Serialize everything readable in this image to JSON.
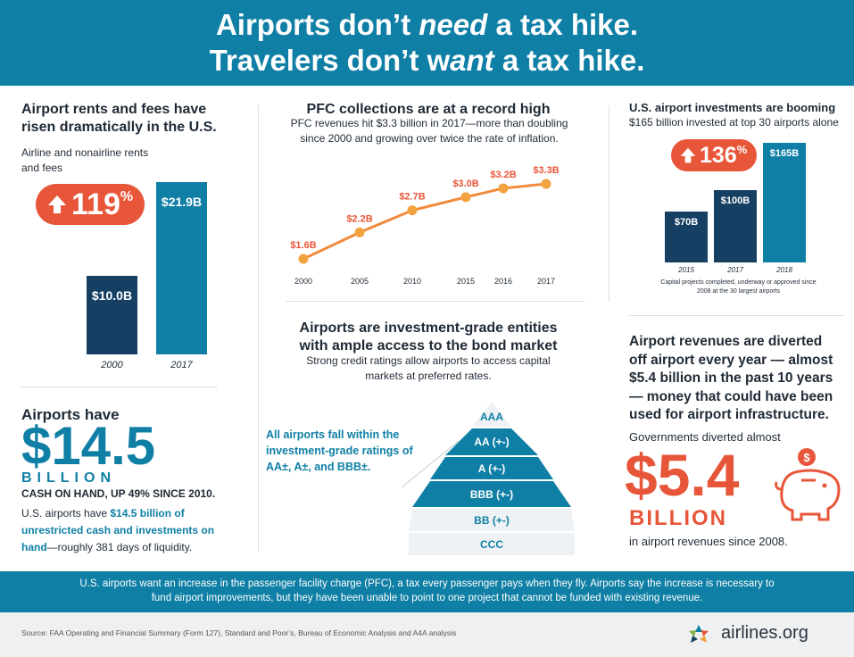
{
  "header": {
    "line1_a": "Airports don’t ",
    "line1_em": "need",
    "line1_b": " a tax hike.",
    "line2_a": "Travelers don’t w",
    "line2_em": "ant",
    "line2_b": " a tax hike."
  },
  "rents": {
    "title": "Airport rents and fees have risen dramatically in the U.S.",
    "subtitle": "Airline and nonairline rents and fees",
    "badge": "119",
    "badge_pct": "%"
  },
  "cash": {
    "title": "Airports have",
    "amount": "$14.5",
    "unit": "BILLION",
    "caption": "CASH ON HAND, UP 49% SINCE 2010.",
    "text_a": "U.S. airports have ",
    "text_bold": "$14.5 billion of unrestricted cash and investments on hand",
    "text_b": "—roughly 381 days of liquidity."
  },
  "pfc": {
    "title": "PFC collections are at a record high",
    "subtitle": "PFC revenues hit $3.3 billion in 2017—more than doubling since 2000 and growing over twice the rate of inflation."
  },
  "bond": {
    "title": "Airports are investment-grade entities with ample access to the bond market",
    "subtitle": "Strong credit ratings allow airports to access capital markets at preferred rates.",
    "callout": "All airports fall within the investment-grade ratings of AA±, A±, and BBB±.",
    "ratings": [
      "AAA",
      "AA (+-)",
      "A (+-)",
      "BBB (+-)",
      "BB (+-)",
      "CCC"
    ]
  },
  "invest": {
    "title": "U.S. airport investments are booming",
    "subtitle": "$165 billion invested at top 30 airports alone",
    "badge": "136",
    "badge_pct": "%",
    "note": "Capital projects completed, underway or approved since 2008 at the 30 largest airports"
  },
  "diverted": {
    "title": "Airport revenues are diverted off airport every year — almost $5.4 billion in the past 10 years — money that could have been used for airport infrastructure.",
    "lead": "Governments diverted almost",
    "amount": "$5.4",
    "unit": "BILLION",
    "caption": "in airport revenues since 2008."
  },
  "footer": {
    "text": "U.S. airports want an increase in the passenger facility charge (PFC), a tax every passenger pays when they fly. Airports say the increase is necessary to fund airport improvements, but they have been unable to point to one project that cannot be funded with existing revenue.",
    "source": "Source: FAA Operating and Financial Summary (Form 127), Standard and Poor’s, Bureau of Economic Analysis and A4A analysis",
    "logo": "airlines.org"
  },
  "colors": {
    "teal": "#0f7fa5",
    "navy": "#153f63",
    "orange": "#e8563a",
    "line_orange": "#f08a3c"
  },
  "chart_data": [
    {
      "type": "bar",
      "categories": [
        "2000",
        "2017"
      ],
      "values": [
        10.0,
        21.9
      ],
      "labels": [
        "$10.0B",
        "$21.9B"
      ],
      "ylim": [
        0,
        21.9
      ]
    },
    {
      "type": "line",
      "x": [
        "2000",
        "2005",
        "2010",
        "2015",
        "2016",
        "2017"
      ],
      "values": [
        1.6,
        2.2,
        2.7,
        3.0,
        3.2,
        3.3
      ],
      "labels": [
        "$1.6B",
        "$2.2B",
        "$2.7B",
        "$3.0B",
        "$3.2B",
        "$3.3B"
      ],
      "ylim": [
        1.6,
        3.3
      ]
    },
    {
      "type": "bar",
      "categories": [
        "2015",
        "2017",
        "2018"
      ],
      "values": [
        70,
        100,
        165
      ],
      "labels": [
        "$70B",
        "$100B",
        "$165B"
      ],
      "ylim": [
        0,
        165
      ]
    }
  ]
}
